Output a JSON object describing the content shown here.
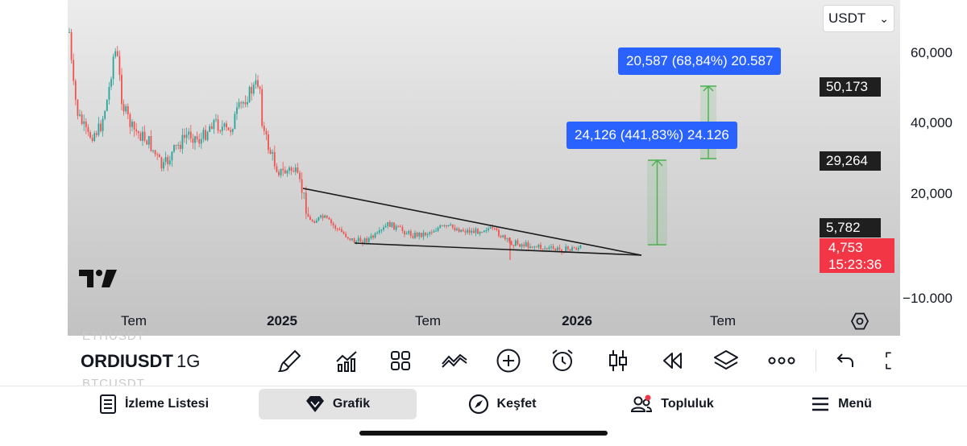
{
  "chart": {
    "currency": "USDT",
    "price_axis": [
      "60,000",
      "40,000",
      "20,000",
      "−10.000"
    ],
    "price_tags": [
      "50,173",
      "29,264",
      "5,782"
    ],
    "last_price": "4,753",
    "countdown": "15:23:36",
    "time_axis": [
      {
        "label": "Tem",
        "bold": false
      },
      {
        "label": "2025",
        "bold": true
      },
      {
        "label": "Tem",
        "bold": false
      },
      {
        "label": "2026",
        "bold": true
      },
      {
        "label": "Tem",
        "bold": false
      }
    ],
    "measure_1": "24,126 (441,83%) 24.126",
    "measure_2": "20,587 (68,84%) 20.587",
    "colors": {
      "up": "#26a69a",
      "down": "#ef5350",
      "measure": "#2962ff",
      "measure_line": "#4caf50",
      "live": "#f23645"
    }
  },
  "toolbar": {
    "symbol": "ORDIUSDT",
    "symbol_above": "ETHUSDT",
    "symbol_below": "BTCUSDT",
    "interval": "1G",
    "icons": [
      "brush-icon",
      "indicators-icon",
      "templates-icon",
      "compare-icon",
      "add-icon",
      "alert-icon",
      "candles-icon",
      "replay-icon",
      "layers-icon",
      "more-icon",
      "undo-icon",
      "fullscreen-icon"
    ]
  },
  "nav": {
    "items": [
      {
        "label": "İzleme Listesi",
        "icon": "watchlist-icon"
      },
      {
        "label": "Grafik",
        "icon": "chart-icon"
      },
      {
        "label": "Keşfet",
        "icon": "compass-icon"
      },
      {
        "label": "Topluluk",
        "icon": "community-icon"
      },
      {
        "label": "Menü",
        "icon": "menu-icon"
      }
    ]
  }
}
